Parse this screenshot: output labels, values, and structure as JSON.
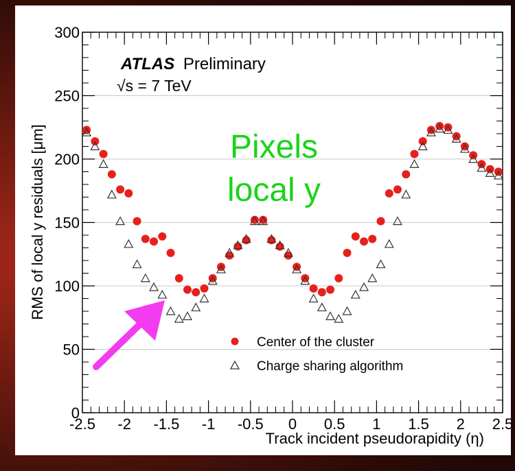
{
  "overlay": {
    "label_line1": "Pixels",
    "label_line2": "local y",
    "label_color": "#18d418",
    "arrow_color": "#f33cf0"
  },
  "chart_data": {
    "type": "scatter",
    "atlas": "ATLAS",
    "preliminary": "Preliminary",
    "energy": "√s = 7 TeV",
    "xlabel": "Track incident pseudorapidity (η)",
    "ylabel": "RMS of local y residuals [μm]",
    "xlim": [
      -2.5,
      2.5
    ],
    "ylim": [
      0,
      300
    ],
    "x_ticks": [
      "-2.5",
      "-2",
      "-1.5",
      "-1",
      "-0.5",
      "0",
      "0.5",
      "1",
      "1.5",
      "2",
      "2.5"
    ],
    "y_ticks": [
      "0",
      "50",
      "100",
      "150",
      "200",
      "250",
      "300"
    ],
    "grid": true,
    "legend_position": "bottom-right",
    "series": [
      {
        "name": "Center of the cluster",
        "marker": "circle",
        "color": "#e8201c",
        "x": [
          -2.45,
          -2.35,
          -2.25,
          -2.15,
          -2.05,
          -1.95,
          -1.85,
          -1.75,
          -1.65,
          -1.55,
          -1.45,
          -1.35,
          -1.25,
          -1.15,
          -1.05,
          -0.95,
          -0.85,
          -0.75,
          -0.65,
          -0.55,
          -0.45,
          -0.35,
          -0.25,
          -0.15,
          -0.05,
          0.05,
          0.15,
          0.25,
          0.35,
          0.45,
          0.55,
          0.65,
          0.75,
          0.85,
          0.95,
          1.05,
          1.15,
          1.25,
          1.35,
          1.45,
          1.55,
          1.65,
          1.75,
          1.85,
          1.95,
          2.05,
          2.15,
          2.25,
          2.35,
          2.45
        ],
        "y": [
          223,
          214,
          204,
          188,
          176,
          173,
          151,
          137,
          135,
          139,
          126,
          106,
          97,
          95,
          98,
          106,
          115,
          124,
          131,
          136,
          152,
          152,
          136,
          131,
          124,
          115,
          106,
          98,
          95,
          97,
          106,
          126,
          139,
          135,
          137,
          151,
          173,
          176,
          188,
          204,
          214,
          223,
          226,
          225,
          218,
          210,
          203,
          196,
          192,
          190
        ]
      },
      {
        "name": "Charge sharing algorithm",
        "marker": "triangle",
        "color": "#333333",
        "x": [
          -2.45,
          -2.35,
          -2.25,
          -2.15,
          -2.05,
          -1.95,
          -1.85,
          -1.75,
          -1.65,
          -1.55,
          -1.45,
          -1.35,
          -1.25,
          -1.15,
          -1.05,
          -0.95,
          -0.85,
          -0.75,
          -0.65,
          -0.55,
          -0.45,
          -0.35,
          -0.25,
          -0.15,
          -0.05,
          0.05,
          0.15,
          0.25,
          0.35,
          0.45,
          0.55,
          0.65,
          0.75,
          0.85,
          0.95,
          1.05,
          1.15,
          1.25,
          1.35,
          1.45,
          1.55,
          1.65,
          1.75,
          1.85,
          1.95,
          2.05,
          2.15,
          2.25,
          2.35,
          2.45
        ],
        "y": [
          221,
          210,
          196,
          172,
          151,
          133,
          117,
          106,
          99,
          93,
          80,
          74,
          76,
          83,
          90,
          104,
          113,
          126,
          132,
          137,
          151,
          151,
          137,
          132,
          126,
          113,
          104,
          90,
          83,
          76,
          74,
          80,
          93,
          99,
          106,
          117,
          133,
          151,
          172,
          196,
          210,
          221,
          224,
          223,
          216,
          208,
          200,
          193,
          189,
          187
        ]
      }
    ]
  }
}
